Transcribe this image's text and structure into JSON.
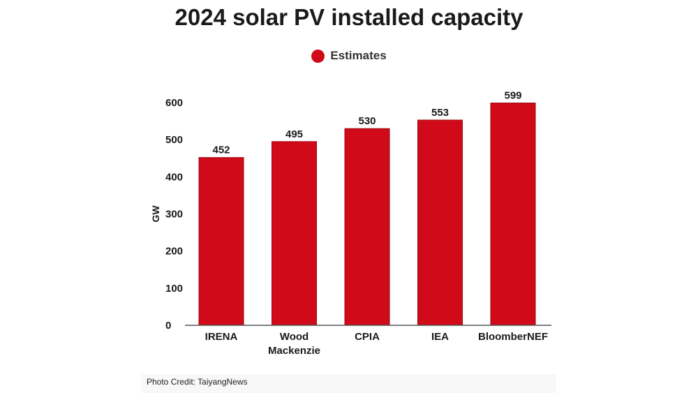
{
  "chart_data": {
    "type": "bar",
    "title": "2024 solar PV installed capacity",
    "xlabel": "",
    "ylabel": "GW",
    "ylim": [
      0,
      600
    ],
    "yticks": [
      "0",
      "100",
      "200",
      "300",
      "400",
      "500",
      "600"
    ],
    "categories": [
      "IRENA",
      "Wood Mackenzie",
      "CPIA",
      "IEA",
      "BloomberNEF"
    ],
    "series": [
      {
        "name": "Estimates",
        "values": [
          452,
          495,
          530,
          553,
          599
        ],
        "color": "#d00a19"
      }
    ],
    "legend_position": "top-center",
    "grid": false
  },
  "credit": "Photo Credit: TaiyangNews"
}
